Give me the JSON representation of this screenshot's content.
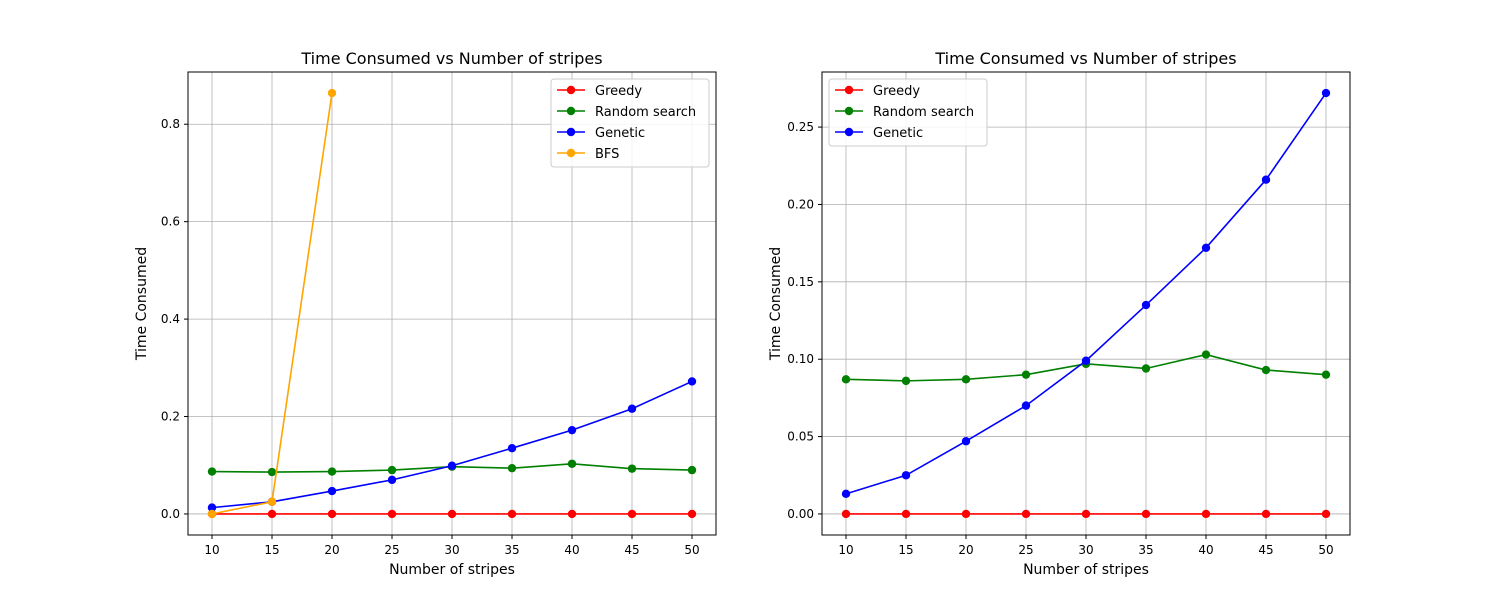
{
  "chart_data": [
    {
      "type": "line",
      "title": "Time Consumed vs Number of stripes",
      "xlabel": "Number of stripes",
      "ylabel": "Time Consumed",
      "xlim": [
        8.0,
        52.0
      ],
      "ylim": [
        -0.0432,
        0.9072
      ],
      "x_ticks": [
        10,
        15,
        20,
        25,
        30,
        35,
        40,
        45,
        50
      ],
      "x_tick_labels": [
        "10",
        "15",
        "20",
        "25",
        "30",
        "35",
        "40",
        "45",
        "50"
      ],
      "y_ticks": [
        0.0,
        0.2,
        0.4,
        0.6,
        0.8
      ],
      "y_tick_labels": [
        "0.0",
        "0.2",
        "0.4",
        "0.6",
        "0.8"
      ],
      "grid": true,
      "legend_position": "top-right",
      "series": [
        {
          "name": "Greedy",
          "color": "#ff0000",
          "x": [
            10,
            15,
            20,
            25,
            30,
            35,
            40,
            45,
            50
          ],
          "y": [
            0.0,
            0.0,
            0.0,
            0.0,
            0.0,
            0.0,
            0.0,
            0.0,
            0.0
          ]
        },
        {
          "name": "Random search",
          "color": "#008000",
          "x": [
            10,
            15,
            20,
            25,
            30,
            35,
            40,
            45,
            50
          ],
          "y": [
            0.087,
            0.086,
            0.087,
            0.09,
            0.097,
            0.094,
            0.103,
            0.093,
            0.09
          ]
        },
        {
          "name": "Genetic",
          "color": "#0000ff",
          "x": [
            10,
            15,
            20,
            25,
            30,
            35,
            40,
            45,
            50
          ],
          "y": [
            0.013,
            0.025,
            0.047,
            0.07,
            0.099,
            0.135,
            0.172,
            0.216,
            0.272
          ]
        },
        {
          "name": "BFS",
          "color": "#ffa500",
          "x": [
            10,
            15,
            20
          ],
          "y": [
            0.0,
            0.025,
            0.864
          ]
        }
      ]
    },
    {
      "type": "line",
      "title": "Time Consumed vs Number of stripes",
      "xlabel": "Number of stripes",
      "ylabel": "Time Consumed",
      "xlim": [
        8.0,
        52.0
      ],
      "ylim": [
        -0.0136,
        0.2856
      ],
      "x_ticks": [
        10,
        15,
        20,
        25,
        30,
        35,
        40,
        45,
        50
      ],
      "x_tick_labels": [
        "10",
        "15",
        "20",
        "25",
        "30",
        "35",
        "40",
        "45",
        "50"
      ],
      "y_ticks": [
        0.0,
        0.05,
        0.1,
        0.15,
        0.2,
        0.25
      ],
      "y_tick_labels": [
        "0.00",
        "0.05",
        "0.10",
        "0.15",
        "0.20",
        "0.25"
      ],
      "grid": true,
      "legend_position": "top-left",
      "series": [
        {
          "name": "Greedy",
          "color": "#ff0000",
          "x": [
            10,
            15,
            20,
            25,
            30,
            35,
            40,
            45,
            50
          ],
          "y": [
            0.0,
            0.0,
            0.0,
            0.0,
            0.0,
            0.0,
            0.0,
            0.0,
            0.0
          ]
        },
        {
          "name": "Random search",
          "color": "#008000",
          "x": [
            10,
            15,
            20,
            25,
            30,
            35,
            40,
            45,
            50
          ],
          "y": [
            0.087,
            0.086,
            0.087,
            0.09,
            0.097,
            0.094,
            0.103,
            0.093,
            0.09
          ]
        },
        {
          "name": "Genetic",
          "color": "#0000ff",
          "x": [
            10,
            15,
            20,
            25,
            30,
            35,
            40,
            45,
            50
          ],
          "y": [
            0.013,
            0.025,
            0.047,
            0.07,
            0.099,
            0.135,
            0.172,
            0.216,
            0.272
          ]
        }
      ]
    }
  ]
}
